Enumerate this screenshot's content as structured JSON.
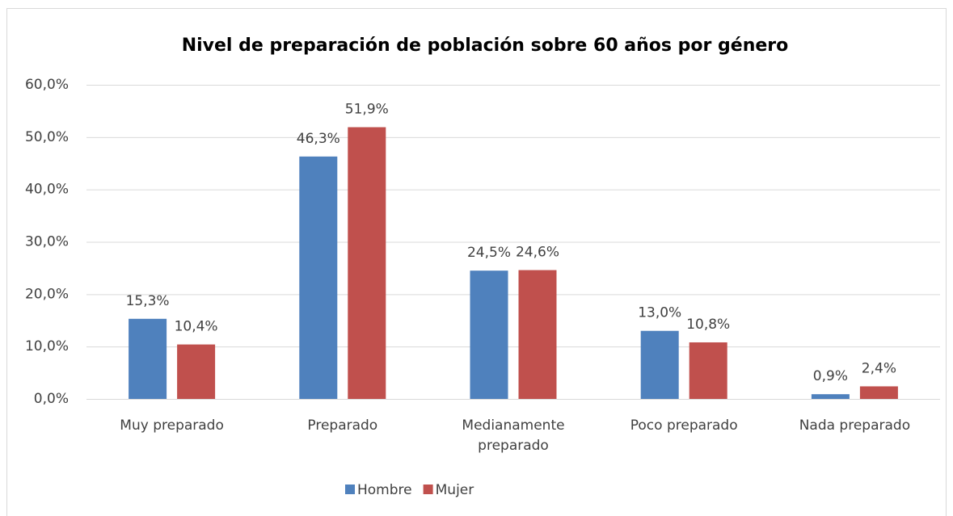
{
  "chart_data": {
    "type": "bar",
    "title": "Nivel de preparación de población sobre 60 años por género",
    "categories": [
      "Muy preparado",
      "Preparado",
      "Medianamente preparado",
      "Poco preparado",
      "Nada preparado"
    ],
    "series": [
      {
        "name": "Hombre",
        "color": "#4f81bd",
        "values": [
          15.3,
          46.3,
          24.5,
          13.0,
          0.9
        ],
        "value_labels": [
          "15,3%",
          "46,3%",
          "24,5%",
          "13,0%",
          "0,9%"
        ]
      },
      {
        "name": "Mujer",
        "color": "#c0504d",
        "values": [
          10.4,
          51.9,
          24.6,
          10.8,
          2.4
        ],
        "value_labels": [
          "10,4%",
          "51,9%",
          "24,6%",
          "10,8%",
          "2,4%"
        ]
      }
    ],
    "ylim": [
      0,
      60
    ],
    "yticks": [
      {
        "value": 0,
        "label": "0,0%"
      },
      {
        "value": 10,
        "label": "10,0%"
      },
      {
        "value": 20,
        "label": "20,0%"
      },
      {
        "value": 30,
        "label": "30,0%"
      },
      {
        "value": 40,
        "label": "40,0%"
      },
      {
        "value": 50,
        "label": "50,0%"
      },
      {
        "value": 60,
        "label": "60,0%"
      }
    ],
    "grid": true,
    "legend": "bottom"
  }
}
